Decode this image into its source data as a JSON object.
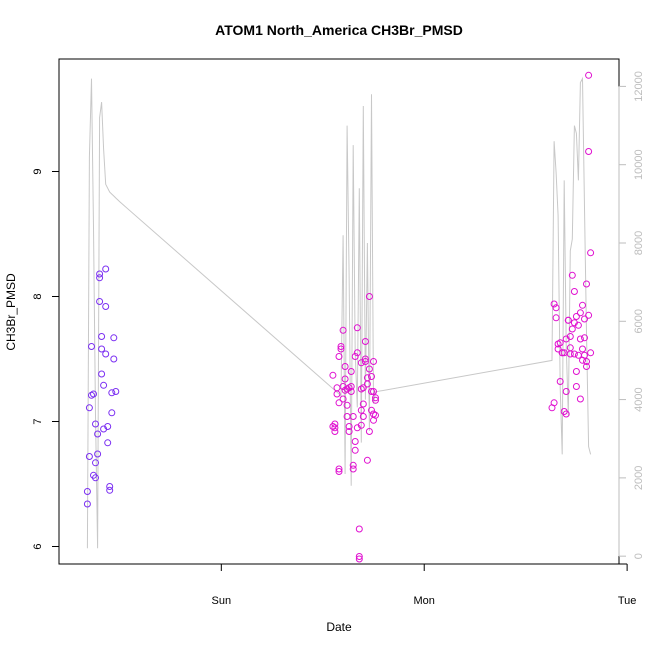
{
  "chart_data": {
    "type": "scatter",
    "title": "ATOM1 North_America CH3Br_PMSD",
    "xlabel": "Date",
    "ylabel": "CH3Br_PMSD",
    "x_ticks": [
      "Sun",
      "Mon",
      "Tue"
    ],
    "xlim": [
      -0.8,
      1.96
    ],
    "ylim": [
      5.86,
      9.9
    ],
    "y_ticks": [
      6,
      7,
      8,
      9
    ],
    "y2lim": [
      -200,
      12700
    ],
    "y2_ticks": [
      0,
      2000,
      4000,
      6000,
      8000,
      10000,
      12000
    ],
    "grid": false,
    "legend": "none",
    "colors": {
      "points_early": "#7b2ff2",
      "points_late": "#e010d0",
      "line": "#c8c8c8",
      "axis": "#000000",
      "axis_right": "#bdbdbd"
    },
    "series": [
      {
        "kind": "points",
        "x": [
          -0.66,
          -0.66,
          -0.65,
          -0.65,
          -0.64,
          -0.64,
          -0.63,
          -0.63,
          -0.62,
          -0.62,
          -0.62,
          -0.61,
          -0.61,
          -0.6,
          -0.6,
          -0.6,
          -0.59,
          -0.59,
          -0.59,
          -0.58,
          -0.58,
          -0.57,
          -0.57,
          -0.57,
          -0.56,
          -0.56,
          -0.55,
          -0.55,
          -0.54,
          -0.54,
          -0.53,
          -0.53,
          -0.52,
          0.55,
          0.55,
          0.56,
          0.56,
          0.56,
          0.57,
          0.57,
          0.58,
          0.58,
          0.58,
          0.58,
          0.59,
          0.59,
          0.6,
          0.6,
          0.6,
          0.61,
          0.61,
          0.61,
          0.62,
          0.62,
          0.62,
          0.63,
          0.63,
          0.63,
          0.64,
          0.64,
          0.64,
          0.65,
          0.65,
          0.65,
          0.66,
          0.66,
          0.66,
          0.67,
          0.67,
          0.67,
          0.68,
          0.68,
          0.68,
          0.69,
          0.69,
          0.69,
          0.69,
          0.7,
          0.7,
          0.7,
          0.71,
          0.71,
          0.71,
          0.72,
          0.72,
          0.72,
          0.73,
          0.73,
          0.73,
          0.74,
          0.74,
          0.74,
          0.75,
          0.75,
          0.75,
          0.75,
          0.76,
          0.76,
          0.76,
          1.63,
          1.64,
          1.64,
          1.65,
          1.65,
          1.66,
          1.66,
          1.67,
          1.67,
          1.68,
          1.68,
          1.69,
          1.69,
          1.7,
          1.7,
          1.7,
          1.71,
          1.71,
          1.72,
          1.72,
          1.72,
          1.73,
          1.73,
          1.74,
          1.74,
          1.74,
          1.75,
          1.75,
          1.75,
          1.76,
          1.76,
          1.77,
          1.77,
          1.77,
          1.78,
          1.78,
          1.78,
          1.79,
          1.79,
          1.79,
          1.8,
          1.8,
          1.8,
          1.81,
          1.81,
          1.81,
          1.82,
          1.82
        ],
        "y": [
          6.34,
          6.44,
          6.72,
          7.11,
          7.21,
          7.6,
          7.22,
          6.57,
          6.55,
          6.67,
          6.98,
          6.9,
          6.74,
          8.15,
          8.18,
          7.96,
          7.68,
          7.58,
          7.38,
          7.29,
          6.94,
          8.22,
          7.92,
          7.54,
          6.83,
          6.96,
          6.48,
          6.45,
          7.07,
          7.23,
          7.5,
          7.67,
          7.24,
          6.96,
          7.37,
          6.95,
          6.92,
          6.98,
          7.22,
          7.27,
          6.6,
          6.62,
          7.15,
          7.52,
          7.58,
          7.6,
          7.28,
          7.18,
          7.73,
          7.44,
          7.34,
          7.25,
          7.26,
          7.13,
          7.04,
          6.92,
          6.96,
          7.27,
          7.28,
          7.24,
          7.4,
          6.62,
          6.65,
          7.04,
          6.84,
          6.77,
          7.52,
          7.55,
          6.95,
          7.75,
          5.92,
          5.9,
          6.14,
          7.26,
          7.47,
          7.09,
          6.97,
          7.14,
          7.04,
          7.27,
          7.48,
          7.5,
          7.64,
          7.3,
          6.69,
          7.35,
          8.0,
          7.42,
          6.92,
          7.09,
          7.36,
          7.24,
          7.01,
          7.24,
          7.48,
          7.06,
          7.19,
          7.05,
          7.17,
          7.11,
          7.15,
          7.94,
          7.91,
          7.83,
          7.62,
          7.58,
          7.32,
          7.63,
          7.55,
          7.55,
          7.08,
          7.55,
          7.06,
          7.24,
          7.66,
          7.81,
          7.81,
          7.54,
          7.68,
          7.59,
          8.17,
          7.74,
          7.79,
          7.54,
          8.04,
          7.28,
          7.4,
          7.84,
          7.53,
          7.77,
          7.18,
          7.87,
          7.66,
          7.93,
          7.49,
          7.58,
          7.82,
          7.67,
          7.53,
          7.48,
          7.44,
          8.1,
          7.85,
          9.77,
          9.16,
          8.35,
          7.55
        ]
      },
      {
        "kind": "line",
        "x": [
          -0.66,
          -0.65,
          -0.64,
          -0.63,
          -0.62,
          -0.61,
          -0.6,
          -0.59,
          -0.58,
          -0.57,
          -0.56,
          -0.55,
          -0.54,
          -0.53,
          -0.52,
          -0.51,
          -0.5,
          0.59,
          0.6,
          0.61,
          0.62,
          0.63,
          0.64,
          0.65,
          0.66,
          0.67,
          0.68,
          0.69,
          0.7,
          0.71,
          0.72,
          0.73,
          0.74,
          0.75,
          0.76,
          1.63,
          1.64,
          1.65,
          1.66,
          1.67,
          1.68,
          1.69,
          1.7,
          1.71,
          1.72,
          1.73,
          1.74,
          1.75,
          1.76,
          1.77,
          1.78,
          1.79,
          1.8,
          1.81,
          1.82
        ],
        "y": [
          200,
          10200,
          12200,
          8400,
          3600,
          200,
          11200,
          11600,
          10400,
          9500,
          9400,
          9300,
          9250,
          9200,
          9150,
          9100,
          9050,
          4100,
          8200,
          2100,
          11000,
          7200,
          1800,
          10500,
          5200,
          3800,
          9400,
          2900,
          11500,
          4000,
          8000,
          3200,
          11800,
          3900,
          4200,
          5000,
          10600,
          9800,
          8700,
          4300,
          2600,
          9600,
          5400,
          3600,
          7800,
          8100,
          11000,
          10800,
          9600,
          12100,
          12200,
          8900,
          5700,
          2800,
          2600
        ]
      }
    ]
  }
}
